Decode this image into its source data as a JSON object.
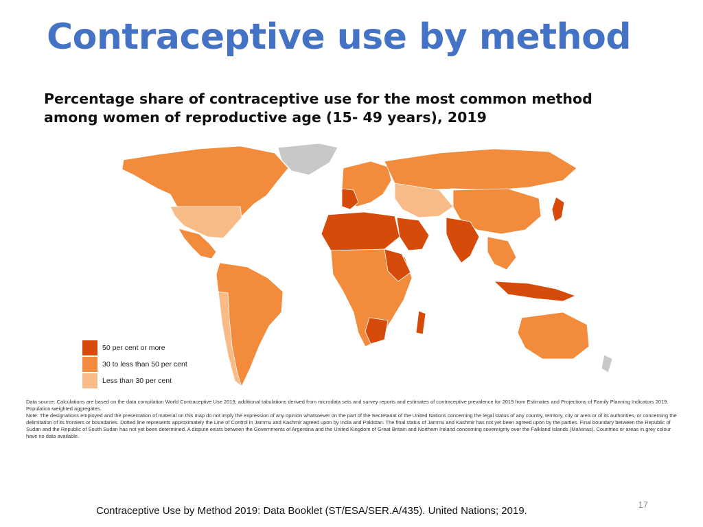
{
  "slide": {
    "title": "Contraceptive use by method",
    "subtitle_line1": "Percentage share of contraceptive use for the most common method",
    "subtitle_line2": "among women of reproductive age (15- 49 years), 2019",
    "slide_number": "17",
    "citation": "Contraceptive Use by Method 2019: Data Booklet (ST/ESA/SER.A/435). United Nations; 2019."
  },
  "colors": {
    "high": "#d64a0a",
    "mid": "#f28b3c",
    "low": "#f8bb87",
    "no_data": "#c8c8c8",
    "title": "#4472c4"
  },
  "legend": [
    {
      "label": "50 per cent or more",
      "color": "#d64a0a"
    },
    {
      "label": "30 to less than 50 per cent",
      "color": "#f28b3c"
    },
    {
      "label": "Less than 30 per cent",
      "color": "#f8bb87"
    }
  ],
  "data_source": {
    "source_label": "Data source:",
    "source_text": "Calculations are based on the data compilation World Contraceptive Use 2019, additional tabulations derived from microdata sets and survey reports and estimates of contraceptive prevalence for 2019 from Estimates and Projections of Family Planning Indicators 2019. Population-weighted aggregates.",
    "note_label": "Note:",
    "note_text": "The designations employed and the presentation of material on this map do not imply the expression of any opinion whatsoever on the part of the Secretariat of the United Nations concerning the legal status of any country, territory, city or area or of its authorities, or concerning the delimitation of its frontiers or boundaries. Dotted line represents approximately the Line of Control in Jammu and Kashmir agreed upon by India and Pakistan. The final status of Jammu and Kashmir has not yet been agreed upon by the parties. Final boundary between the Republic of Sudan and the Republic of South Sudan has not yet been determined. A dispute exists between the Governments of Argentina and the United Kingdom of Great Britain and Northern Ireland concerning sovereignty over the Falkland Islands (Malvinas). Countries or areas in grey colour have no data available."
  }
}
